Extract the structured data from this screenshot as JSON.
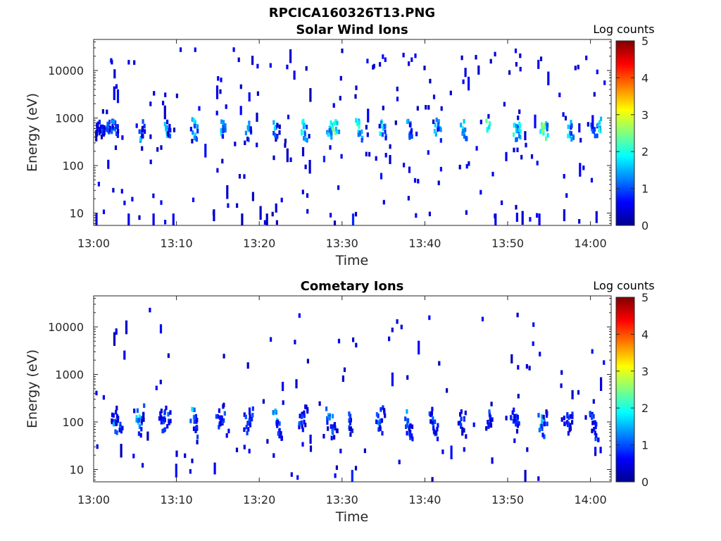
{
  "figure": {
    "filename": "RPCICA160326T13.PNG"
  },
  "colorscale": {
    "label": "Log counts",
    "ticks": [
      "0",
      "1",
      "2",
      "3",
      "4",
      "5"
    ],
    "colors": [
      "#00008f",
      "#0000ff",
      "#0080ff",
      "#00ffff",
      "#80ff80",
      "#ffff00",
      "#ff8000",
      "#ff0000",
      "#800000"
    ]
  },
  "chart_data": [
    {
      "type": "heatmap",
      "title": "Solar Wind Ions",
      "xlabel": "Time",
      "ylabel": "Energy (eV)",
      "x_ticks": [
        "13:00",
        "13:10",
        "13:20",
        "13:30",
        "13:40",
        "13:50",
        "14:00"
      ],
      "x_tick_minutes": [
        0,
        10,
        20,
        30,
        40,
        50,
        60
      ],
      "xlim_minutes": [
        0,
        62.5
      ],
      "y_ticks": [
        "10",
        "100",
        "1000",
        "10000"
      ],
      "y_tick_values": [
        10,
        100,
        1000,
        10000
      ],
      "ylim": [
        5.5,
        45000
      ],
      "yscale": "log",
      "zlim": [
        0,
        5
      ],
      "bands": [
        {
          "t": [
            0.1,
            0.4,
            0.8,
            1.2,
            1.5,
            2.0,
            2.3,
            2.7
          ],
          "e": [
            650,
            700,
            620,
            680,
            720,
            650,
            700,
            640
          ],
          "z": [
            0.6,
            0.9,
            0.8,
            1.1,
            1.4,
            1.0,
            1.6,
            1.2
          ]
        },
        {
          "t": [
            5.6,
            5.9,
            8.6,
            8.9,
            11.9,
            12.2,
            15.4,
            15.7,
            18.4,
            18.7,
            21.8,
            22.1
          ],
          "e": [
            560,
            640,
            690,
            560,
            720,
            580,
            700,
            560,
            690,
            560,
            710,
            580
          ],
          "z": [
            1.8,
            1.2,
            1.9,
            1.1,
            2.1,
            1.6,
            2.0,
            1.4,
            1.9,
            1.3,
            1.8,
            1.0
          ]
        },
        {
          "t": [
            25.2,
            25.5,
            28.3,
            28.6,
            28.9,
            29.3,
            31.8,
            32.1,
            34.7,
            35.0,
            37.9,
            38.2,
            41.3,
            41.6
          ],
          "e": [
            690,
            560,
            700,
            580,
            650,
            720,
            690,
            560,
            700,
            580,
            700,
            570,
            690,
            560
          ],
          "z": [
            2.0,
            1.5,
            2.1,
            1.9,
            2.6,
            2.2,
            2.2,
            1.5,
            2.1,
            1.3,
            1.8,
            1.2,
            2.1,
            1.6
          ]
        },
        {
          "t": [
            44.4,
            44.7,
            47.5,
            50.8,
            51.1,
            51.4,
            54.0,
            54.3,
            54.6,
            57.4,
            57.7,
            60.2,
            60.5,
            61.0
          ],
          "e": [
            690,
            580,
            690,
            700,
            580,
            640,
            700,
            580,
            650,
            690,
            560,
            700,
            600,
            740
          ],
          "z": [
            2.3,
            1.6,
            2.6,
            2.2,
            1.6,
            2.0,
            2.4,
            2.6,
            1.8,
            2.0,
            1.4,
            1.8,
            1.2,
            2.3
          ]
        }
      ],
      "scatter_events": [
        {
          "t": 0.2,
          "e": 7.5,
          "z": 0.4
        },
        {
          "t": 4.1,
          "e": 7.0,
          "z": 0.5
        },
        {
          "t": 7.1,
          "e": 6.8,
          "z": 0.5
        },
        {
          "t": 9.5,
          "e": 7.2,
          "z": 0.6
        },
        {
          "t": 14.4,
          "e": 12.0,
          "z": 0.4
        },
        {
          "t": 17.8,
          "e": 9.0,
          "z": 0.3
        },
        {
          "t": 20.8,
          "e": 9.0,
          "z": 0.3
        },
        {
          "t": 31.2,
          "e": 6.5,
          "z": 0.8
        },
        {
          "t": 38.0,
          "e": 95,
          "z": 0.4
        },
        {
          "t": 48.4,
          "e": 8.0,
          "z": 0.5
        },
        {
          "t": 53.7,
          "e": 7.0,
          "z": 0.6
        },
        {
          "t": 56.7,
          "e": 12.0,
          "z": 0.4
        },
        {
          "t": 60.6,
          "e": 11.0,
          "z": 0.4
        },
        {
          "t": 34.6,
          "e": 70,
          "z": 0.7
        },
        {
          "t": 27.7,
          "e": 160,
          "z": 0.8
        }
      ]
    },
    {
      "type": "heatmap",
      "title": "Cometary Ions",
      "xlabel": "Time",
      "ylabel": "Energy (eV)",
      "x_ticks": [
        "13:00",
        "13:10",
        "13:20",
        "13:30",
        "13:40",
        "13:50",
        "14:00"
      ],
      "x_tick_minutes": [
        0,
        10,
        20,
        30,
        40,
        50,
        60
      ],
      "xlim_minutes": [
        0,
        62.5
      ],
      "y_ticks": [
        "10",
        "100",
        "1000",
        "10000"
      ],
      "y_tick_values": [
        10,
        100,
        1000,
        10000
      ],
      "ylim": [
        5.5,
        45000
      ],
      "yscale": "log",
      "zlim": [
        0,
        5
      ],
      "bands": [
        {
          "t": [
            2.2,
            2.5,
            2.8,
            3.1,
            5.2,
            5.5,
            5.8,
            8.0,
            8.3,
            8.6,
            9.0,
            11.8,
            12.1,
            12.4
          ],
          "e": [
            120,
            80,
            150,
            100,
            130,
            90,
            170,
            140,
            100,
            170,
            120,
            160,
            110,
            80
          ],
          "z": [
            1.2,
            1.8,
            1.0,
            1.3,
            1.9,
            1.2,
            1.0,
            1.1,
            1.4,
            1.0,
            1.2,
            1.8,
            1.2,
            1.0
          ]
        },
        {
          "t": [
            14.9,
            15.2,
            15.5,
            18.3,
            18.6,
            18.9,
            21.8,
            22.1,
            22.4,
            24.9,
            25.2,
            25.5,
            28.2,
            28.5,
            28.8
          ],
          "e": [
            130,
            90,
            160,
            110,
            80,
            150,
            140,
            100,
            70,
            130,
            100,
            160,
            150,
            100,
            70
          ],
          "z": [
            1.3,
            1.0,
            1.1,
            1.2,
            1.0,
            1.3,
            1.9,
            1.4,
            1.0,
            1.2,
            1.0,
            1.1,
            1.6,
            1.3,
            1.0
          ]
        },
        {
          "t": [
            30.7,
            31.0,
            34.2,
            34.5,
            34.8,
            37.6,
            37.9,
            38.2,
            40.6,
            40.9,
            41.2,
            44.1,
            44.4,
            47.5,
            47.8
          ],
          "e": [
            120,
            80,
            110,
            80,
            150,
            130,
            90,
            70,
            150,
            100,
            70,
            130,
            90,
            110,
            140
          ],
          "z": [
            1.2,
            1.0,
            1.5,
            1.3,
            1.1,
            1.7,
            1.3,
            1.0,
            1.2,
            1.5,
            1.0,
            1.2,
            1.0,
            1.0,
            1.1
          ]
        },
        {
          "t": [
            50.5,
            50.8,
            51.1,
            53.8,
            54.1,
            54.4,
            56.9,
            57.2,
            57.5,
            60.0,
            60.3,
            60.6
          ],
          "e": [
            140,
            100,
            120,
            110,
            80,
            150,
            130,
            90,
            110,
            140,
            100,
            70
          ],
          "z": [
            1.3,
            1.0,
            1.1,
            1.8,
            1.3,
            1.0,
            1.4,
            1.1,
            1.0,
            1.3,
            1.1,
            1.0
          ]
        }
      ],
      "scatter_events": [
        {
          "t": 2.6,
          "e": 9300,
          "z": 0.5
        },
        {
          "t": 18.5,
          "e": 1800,
          "z": 0.3
        },
        {
          "t": 30.0,
          "e": 950,
          "z": 0.3
        },
        {
          "t": 26.1,
          "e": 32,
          "z": 0.3
        },
        {
          "t": 14.5,
          "e": 14,
          "z": 0.6
        },
        {
          "t": 31.1,
          "e": 7.0,
          "z": 0.8
        },
        {
          "t": 48.0,
          "e": 18,
          "z": 0.5
        },
        {
          "t": 52.0,
          "e": 6.0,
          "z": 0.3
        },
        {
          "t": 9.9,
          "e": 25,
          "z": 0.4
        },
        {
          "t": 61.1,
          "e": 30,
          "z": 0.5
        }
      ]
    }
  ]
}
